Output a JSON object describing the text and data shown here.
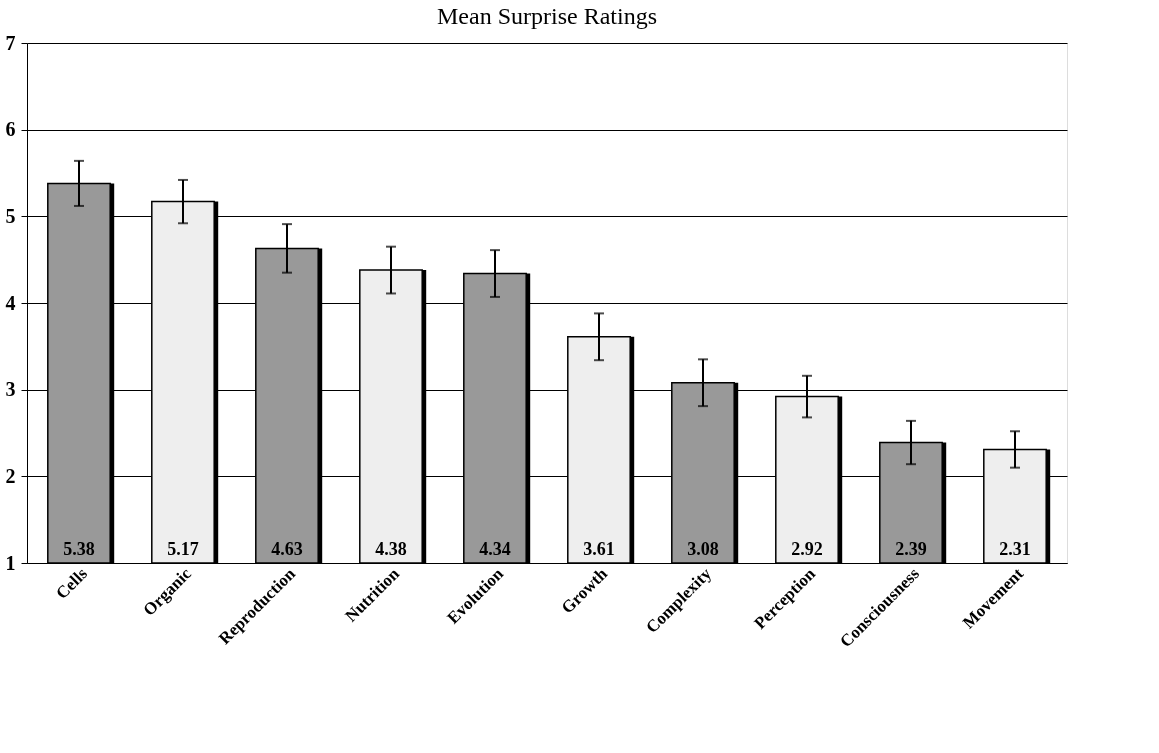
{
  "chart_data": {
    "type": "bar",
    "title": "Mean Surprise Ratings",
    "categories": [
      "Cells",
      "Organic",
      "Reproduction",
      "Nutrition",
      "Evolution",
      "Growth",
      "Complexity",
      "Perception",
      "Consciousness",
      "Movement"
    ],
    "values": [
      5.38,
      5.17,
      4.63,
      4.38,
      4.34,
      3.61,
      3.08,
      2.92,
      2.39,
      2.31
    ],
    "colors": [
      "#999999",
      "#eeeeee",
      "#999999",
      "#eeeeee",
      "#999999",
      "#eeeeee",
      "#999999",
      "#eeeeee",
      "#999999",
      "#eeeeee"
    ],
    "errors": [
      0.26,
      0.25,
      0.28,
      0.27,
      0.27,
      0.27,
      0.27,
      0.24,
      0.25,
      0.21
    ],
    "ylim": [
      1,
      7
    ],
    "yticks": [
      1,
      2,
      3,
      4,
      5,
      6,
      7
    ],
    "grid": "y",
    "data_labels": true
  }
}
